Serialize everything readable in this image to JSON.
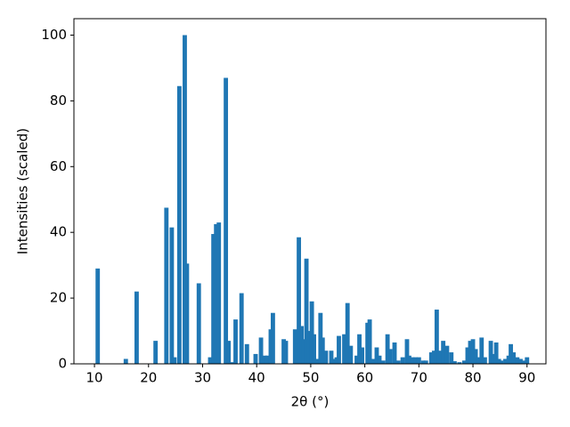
{
  "chart_data": {
    "type": "bar",
    "x_label": "2θ (°)",
    "y_label": "Intensities (scaled)",
    "color": "#1f77b4",
    "x": [
      10.6,
      15.8,
      17.8,
      21.3,
      23.3,
      24.3,
      24.8,
      25.7,
      26.7,
      27.1,
      29.3,
      31.4,
      32.0,
      32.5,
      33.0,
      34.3,
      34.8,
      35.5,
      36.1,
      37.2,
      38.2,
      39.8,
      40.8,
      41.5,
      42.0,
      42.6,
      43.0,
      45.0,
      45.4,
      47.1,
      47.8,
      48.3,
      48.7,
      49.2,
      49.7,
      50.2,
      50.6,
      51.3,
      51.8,
      52.2,
      52.8,
      53.8,
      54.3,
      54.8,
      55.2,
      56.2,
      56.8,
      57.4,
      58.5,
      59.0,
      59.5,
      60.5,
      60.9,
      61.5,
      62.2,
      62.7,
      63.4,
      64.2,
      64.7,
      65.5,
      66.2,
      67.0,
      67.8,
      68.2,
      68.8,
      69.4,
      70.0,
      70.8,
      71.3,
      72.3,
      72.8,
      73.3,
      73.8,
      74.5,
      75.2,
      76.0,
      76.6,
      77.5,
      78.4,
      79.0,
      79.5,
      80.0,
      80.5,
      81.0,
      81.6,
      82.2,
      83.3,
      83.8,
      84.3,
      84.8,
      85.2,
      86.0,
      86.6,
      87.0,
      87.5,
      88.2,
      88.8,
      89.3,
      90.0
    ],
    "values": [
      29,
      1.5,
      22,
      7,
      47.5,
      41.5,
      2,
      84.5,
      100,
      30.5,
      24.5,
      2,
      39.5,
      42.5,
      43,
      87,
      7,
      0.5,
      13.5,
      21.5,
      6,
      3,
      8,
      2.5,
      2.5,
      10.5,
      15.5,
      7.5,
      7,
      10.5,
      38.5,
      11.5,
      7.5,
      32,
      10,
      19,
      9,
      1.5,
      15.5,
      8,
      4,
      4,
      1.5,
      2,
      8.5,
      9,
      18.5,
      5.5,
      2.5,
      9,
      5,
      12.5,
      13.5,
      1.5,
      5,
      2.5,
      1,
      9,
      4.5,
      6.5,
      1,
      2,
      7.5,
      2.5,
      2,
      2,
      2,
      1,
      1,
      3.5,
      4,
      16.5,
      4,
      7,
      5.5,
      3.5,
      0.8,
      0.5,
      1,
      5,
      7,
      7.5,
      4.5,
      2,
      8,
      2,
      7,
      3,
      6.5,
      1.5,
      1,
      1.5,
      2.5,
      6,
      3.5,
      2,
      1.5,
      1,
      2
    ],
    "xlim": [
      6.2,
      93.5
    ],
    "ylim": [
      0,
      105
    ],
    "xticks": [
      10,
      20,
      30,
      40,
      50,
      60,
      70,
      80,
      90
    ],
    "yticks": [
      0,
      20,
      40,
      60,
      80,
      100
    ],
    "grid": false
  }
}
